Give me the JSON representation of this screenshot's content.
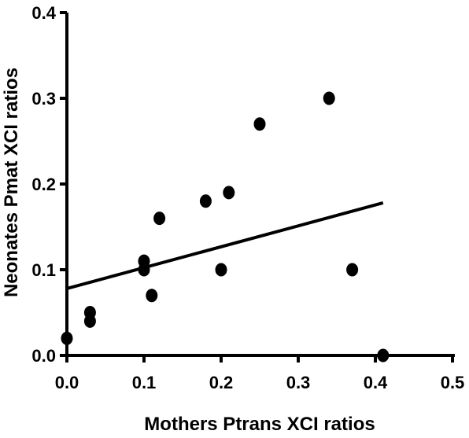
{
  "chart_data": {
    "type": "scatter",
    "title": "",
    "xlabel": "Mothers Ptrans XCI ratios",
    "ylabel": "Neonates Pmat XCI ratios",
    "xlim": [
      0.0,
      0.5
    ],
    "ylim": [
      0.0,
      0.4
    ],
    "x_ticks": [
      "0.0",
      "0.1",
      "0.2",
      "0.3",
      "0.4",
      "0.5"
    ],
    "y_ticks": [
      "0.0",
      "0.1",
      "0.2",
      "0.3",
      "0.4"
    ],
    "grid": false,
    "points": [
      {
        "x": 0.0,
        "y": 0.02
      },
      {
        "x": 0.03,
        "y": 0.05
      },
      {
        "x": 0.03,
        "y": 0.04
      },
      {
        "x": 0.1,
        "y": 0.11
      },
      {
        "x": 0.1,
        "y": 0.1
      },
      {
        "x": 0.11,
        "y": 0.07
      },
      {
        "x": 0.12,
        "y": 0.16
      },
      {
        "x": 0.18,
        "y": 0.18
      },
      {
        "x": 0.2,
        "y": 0.1
      },
      {
        "x": 0.21,
        "y": 0.19
      },
      {
        "x": 0.25,
        "y": 0.27
      },
      {
        "x": 0.34,
        "y": 0.3
      },
      {
        "x": 0.37,
        "y": 0.1
      },
      {
        "x": 0.41,
        "y": 0.0
      }
    ],
    "regression_line": {
      "x": [
        0.0,
        0.41
      ],
      "y": [
        0.078,
        0.178
      ]
    },
    "colors": {
      "marker": "#000000",
      "line": "#000000",
      "axis": "#000000"
    }
  }
}
